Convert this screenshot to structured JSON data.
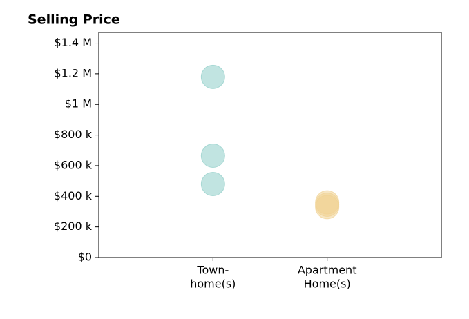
{
  "chart_data": {
    "type": "strip",
    "title": "Selling Price",
    "groups": [
      {
        "label": [
          "Town-",
          "home(s)"
        ],
        "color": "#8ecdc8",
        "values": [
          1180000,
          665000,
          480000
        ]
      },
      {
        "label": [
          "Apartment",
          "Home(s)"
        ],
        "color": "#f0d291",
        "values": [
          360000,
          345000,
          330000
        ]
      }
    ],
    "ylim": [
      0,
      1470000
    ],
    "yticks": [
      {
        "value": 0,
        "label": "$0"
      },
      {
        "value": 200000,
        "label": "$200 k"
      },
      {
        "value": 400000,
        "label": "$400 k"
      },
      {
        "value": 600000,
        "label": "$600 k"
      },
      {
        "value": 800000,
        "label": "$800 k"
      },
      {
        "value": 1000000,
        "label": "$1 M"
      },
      {
        "value": 1200000,
        "label": "$1.2 M"
      },
      {
        "value": 1400000,
        "label": "$1.4 M"
      }
    ],
    "grid": false
  }
}
